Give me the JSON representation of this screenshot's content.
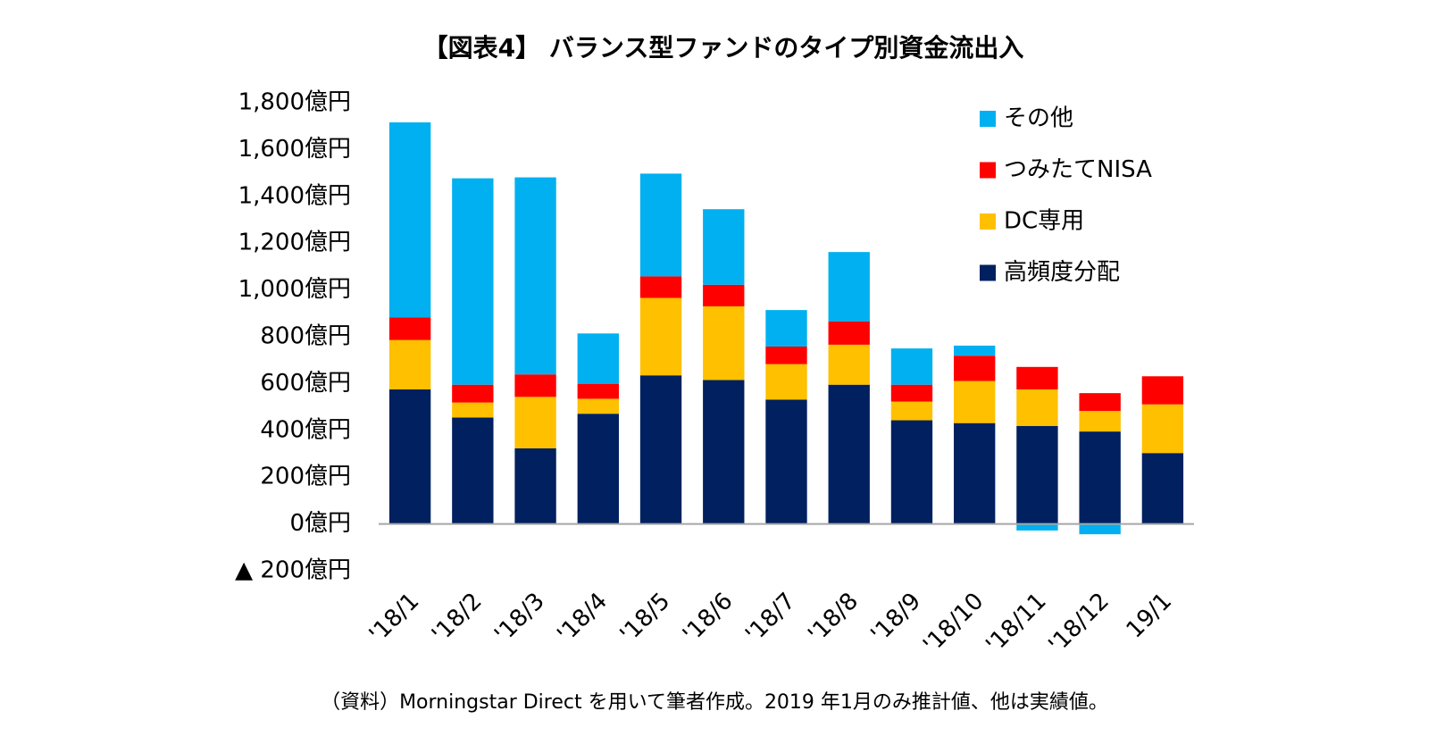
{
  "chart_data": {
    "type": "stacked-bar",
    "title": "【図表4】 バランス型ファンドのタイプ別資金流出入",
    "source": "（資料）Morningstar Direct を用いて筆者作成。2019 年1月のみ推計値、他は実績値。",
    "categories": [
      "'18/1",
      "'18/2",
      "'18/3",
      "'18/4",
      "'18/5",
      "'18/6",
      "'18/7",
      "'18/8",
      "'18/9",
      "'18/10",
      "'18/11",
      "'18/12",
      "19/1"
    ],
    "series": [
      {
        "name": "高頻度分配",
        "color": "#002060",
        "values": [
          575,
          455,
          323,
          471,
          635,
          615,
          531,
          595,
          443,
          431,
          419,
          395,
          303
        ]
      },
      {
        "name": "DC専用",
        "color": "#ffc000",
        "values": [
          211,
          64,
          220,
          64,
          331,
          315,
          152,
          171,
          80,
          180,
          156,
          88,
          208
        ]
      },
      {
        "name": "つみたてNISA",
        "color": "#ff0000",
        "values": [
          96,
          76,
          96,
          64,
          92,
          92,
          75,
          100,
          72,
          108,
          96,
          76,
          120
        ]
      },
      {
        "name": "その他",
        "color": "#00b0f0",
        "values": [
          834,
          882,
          842,
          215,
          439,
          323,
          156,
          296,
          155,
          43,
          -28,
          -44,
          0
        ]
      }
    ],
    "ylim": [
      -200,
      1800
    ],
    "yticks": [
      {
        "value": -200,
        "label": "▲ 200億円"
      },
      {
        "value": 0,
        "label": "0億円"
      },
      {
        "value": 200,
        "label": "200億円"
      },
      {
        "value": 400,
        "label": "400億円"
      },
      {
        "value": 600,
        "label": "600億円"
      },
      {
        "value": 800,
        "label": "800億円"
      },
      {
        "value": 1000,
        "label": "1,000億円"
      },
      {
        "value": 1200,
        "label": "1,200億円"
      },
      {
        "value": 1400,
        "label": "1,400億円"
      },
      {
        "value": 1600,
        "label": "1,600億円"
      },
      {
        "value": 1800,
        "label": "1,800億円"
      }
    ],
    "grid": false
  }
}
